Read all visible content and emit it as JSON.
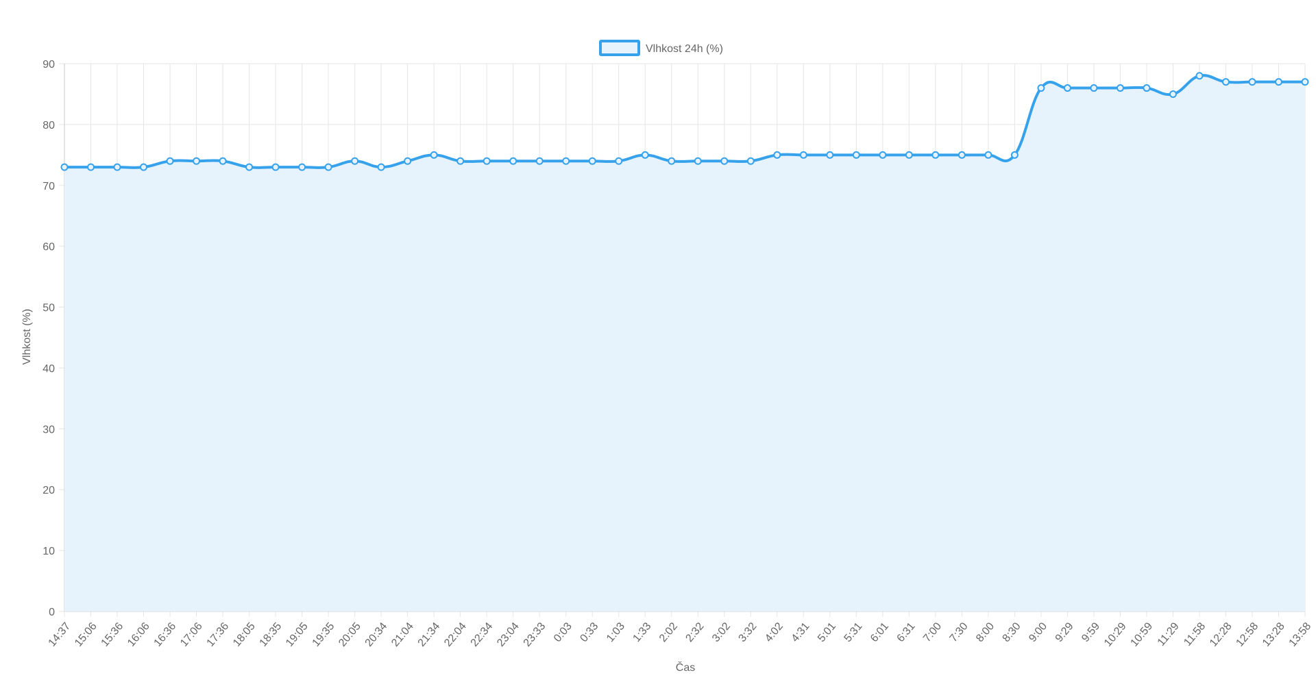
{
  "chart_data": {
    "type": "line",
    "categories": [
      "14:37",
      "15:06",
      "15:36",
      "16:06",
      "16:36",
      "17:06",
      "17:36",
      "18:05",
      "18:35",
      "19:05",
      "19:35",
      "20:05",
      "20:34",
      "21:04",
      "21:34",
      "22:04",
      "22:34",
      "23:04",
      "23:33",
      "0:03",
      "0:33",
      "1:03",
      "1:33",
      "2:02",
      "2:32",
      "3:02",
      "3:32",
      "4:02",
      "4:31",
      "5:01",
      "5:31",
      "6:01",
      "6:31",
      "7:00",
      "7:30",
      "8:00",
      "8:30",
      "9:00",
      "9:29",
      "9:59",
      "10:29",
      "10:59",
      "11:29",
      "11:58",
      "12:28",
      "12:58",
      "13:28",
      "13:58"
    ],
    "series": [
      {
        "name": "Vlhkost 24h (%)",
        "values": [
          73,
          73,
          73,
          73,
          74,
          74,
          74,
          73,
          73,
          73,
          73,
          74,
          73,
          74,
          75,
          74,
          74,
          74,
          74,
          74,
          74,
          74,
          75,
          74,
          74,
          74,
          74,
          75,
          75,
          75,
          75,
          75,
          75,
          75,
          75,
          75,
          75,
          86,
          86,
          86,
          86,
          86,
          85,
          88,
          87,
          87,
          87,
          87
        ],
        "color": "#36a2eb",
        "fill": "#e6f3fc"
      }
    ],
    "xlabel": "Čas",
    "ylabel": "Vlhkost (%)",
    "ylim": [
      0,
      90
    ],
    "yticks": [
      0,
      10,
      20,
      30,
      40,
      50,
      60,
      70,
      80,
      90
    ],
    "grid": true,
    "legend_position": "top"
  }
}
